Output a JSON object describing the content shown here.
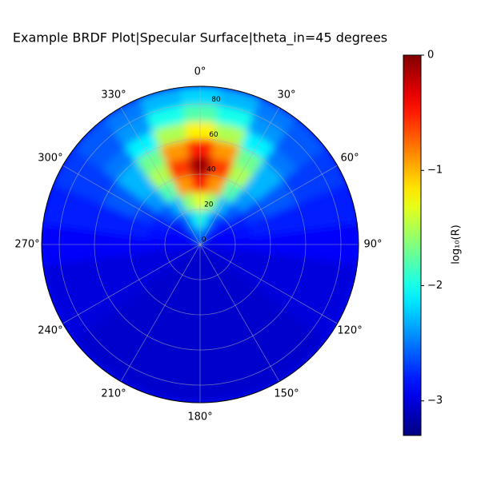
{
  "chart_data": {
    "type": "polar_heatmap",
    "title": "Example BRDF Plot|Specular Surface|theta_in=45 degrees",
    "colorbar_label": "log₁₀(R)",
    "colormap": "jet",
    "theta_zero": "N",
    "theta_direction": "clockwise",
    "grid": true,
    "theta": [
      0,
      15,
      30,
      45,
      60,
      75,
      90,
      105,
      120,
      135,
      150,
      165,
      180,
      195,
      210,
      225,
      240,
      255,
      270,
      285,
      300,
      315,
      330,
      345
    ],
    "r": [
      5,
      15,
      25,
      35,
      45,
      55,
      65,
      75,
      85
    ],
    "values": [
      [
        -2.3,
        -2.5,
        -2.7,
        -2.8,
        -2.9,
        -2.9,
        -2.9,
        -3.0,
        -3.0,
        -3.05,
        -3.05,
        -3.05,
        -3.05,
        -3.05,
        -3.05,
        -3.05,
        -3.0,
        -3.0,
        -2.9,
        -2.9,
        -2.9,
        -2.8,
        -2.7,
        -2.5
      ],
      [
        -1.9,
        -2.2,
        -2.6,
        -2.8,
        -2.85,
        -2.9,
        -2.9,
        -3.0,
        -3.0,
        -3.05,
        -3.05,
        -3.05,
        -3.05,
        -3.05,
        -3.05,
        -3.05,
        -3.0,
        -3.0,
        -2.9,
        -2.9,
        -2.85,
        -2.8,
        -2.6,
        -2.2
      ],
      [
        -1.3,
        -1.6,
        -2.3,
        -2.6,
        -2.8,
        -2.85,
        -2.9,
        -3.0,
        -3.0,
        -3.05,
        -3.05,
        -3.05,
        -3.05,
        -3.05,
        -3.05,
        -3.05,
        -3.0,
        -3.0,
        -2.9,
        -2.85,
        -2.8,
        -2.6,
        -2.3,
        -1.6
      ],
      [
        -0.5,
        -0.9,
        -1.8,
        -2.4,
        -2.7,
        -2.8,
        -2.9,
        -3.0,
        -3.0,
        -3.05,
        -3.05,
        -3.05,
        -3.05,
        -3.05,
        -3.05,
        -3.05,
        -3.0,
        -3.0,
        -2.9,
        -2.8,
        -2.7,
        -2.4,
        -1.8,
        -0.9
      ],
      [
        -0.1,
        -0.6,
        -1.5,
        -2.3,
        -2.6,
        -2.8,
        -2.9,
        -3.0,
        -3.0,
        -3.05,
        -3.05,
        -3.05,
        -3.05,
        -3.05,
        -3.05,
        -3.05,
        -3.0,
        -3.0,
        -2.9,
        -2.8,
        -2.6,
        -2.3,
        -1.5,
        -0.6
      ],
      [
        -0.5,
        -0.9,
        -1.7,
        -2.3,
        -2.6,
        -2.8,
        -2.9,
        -3.0,
        -3.0,
        -3.05,
        -3.05,
        -3.05,
        -3.05,
        -3.05,
        -3.05,
        -3.05,
        -3.0,
        -3.0,
        -2.9,
        -2.8,
        -2.6,
        -2.3,
        -1.7,
        -0.9
      ],
      [
        -1.2,
        -1.5,
        -2.1,
        -2.5,
        -2.7,
        -2.8,
        -2.9,
        -3.0,
        -3.0,
        -3.05,
        -3.05,
        -3.05,
        -3.05,
        -3.05,
        -3.05,
        -3.05,
        -3.0,
        -3.0,
        -2.9,
        -2.8,
        -2.7,
        -2.5,
        -2.1,
        -1.5
      ],
      [
        -1.8,
        -2.0,
        -2.4,
        -2.6,
        -2.7,
        -2.8,
        -2.9,
        -3.0,
        -3.0,
        -3.05,
        -3.05,
        -3.05,
        -3.05,
        -3.05,
        -3.05,
        -3.05,
        -3.0,
        -3.0,
        -2.9,
        -2.8,
        -2.7,
        -2.6,
        -2.4,
        -2.0
      ],
      [
        -2.2,
        -2.3,
        -2.5,
        -2.6,
        -2.7,
        -2.8,
        -2.9,
        -3.0,
        -3.0,
        -3.05,
        -3.05,
        -3.05,
        -3.05,
        -3.05,
        -3.05,
        -3.05,
        -3.0,
        -3.0,
        -2.9,
        -2.8,
        -2.7,
        -2.6,
        -2.5,
        -2.3
      ]
    ],
    "rlim": [
      0,
      90
    ],
    "rticks": [
      0,
      20,
      40,
      60,
      80
    ],
    "thetaticks": [
      {
        "value": 0,
        "label": "0°"
      },
      {
        "value": 30,
        "label": "30°"
      },
      {
        "value": 60,
        "label": "60°"
      },
      {
        "value": 90,
        "label": "90°"
      },
      {
        "value": 120,
        "label": "120°"
      },
      {
        "value": 150,
        "label": "150°"
      },
      {
        "value": 180,
        "label": "180°"
      },
      {
        "value": 210,
        "label": "210°"
      },
      {
        "value": 240,
        "label": "240°"
      },
      {
        "value": 270,
        "label": "270°"
      },
      {
        "value": 300,
        "label": "300°"
      },
      {
        "value": 330,
        "label": "330°"
      }
    ],
    "clim": [
      -3.3,
      0
    ],
    "cticks": [
      {
        "value": -3,
        "label": "−3"
      },
      {
        "value": -2,
        "label": "−2"
      },
      {
        "value": -1,
        "label": "−1"
      },
      0
    ]
  }
}
